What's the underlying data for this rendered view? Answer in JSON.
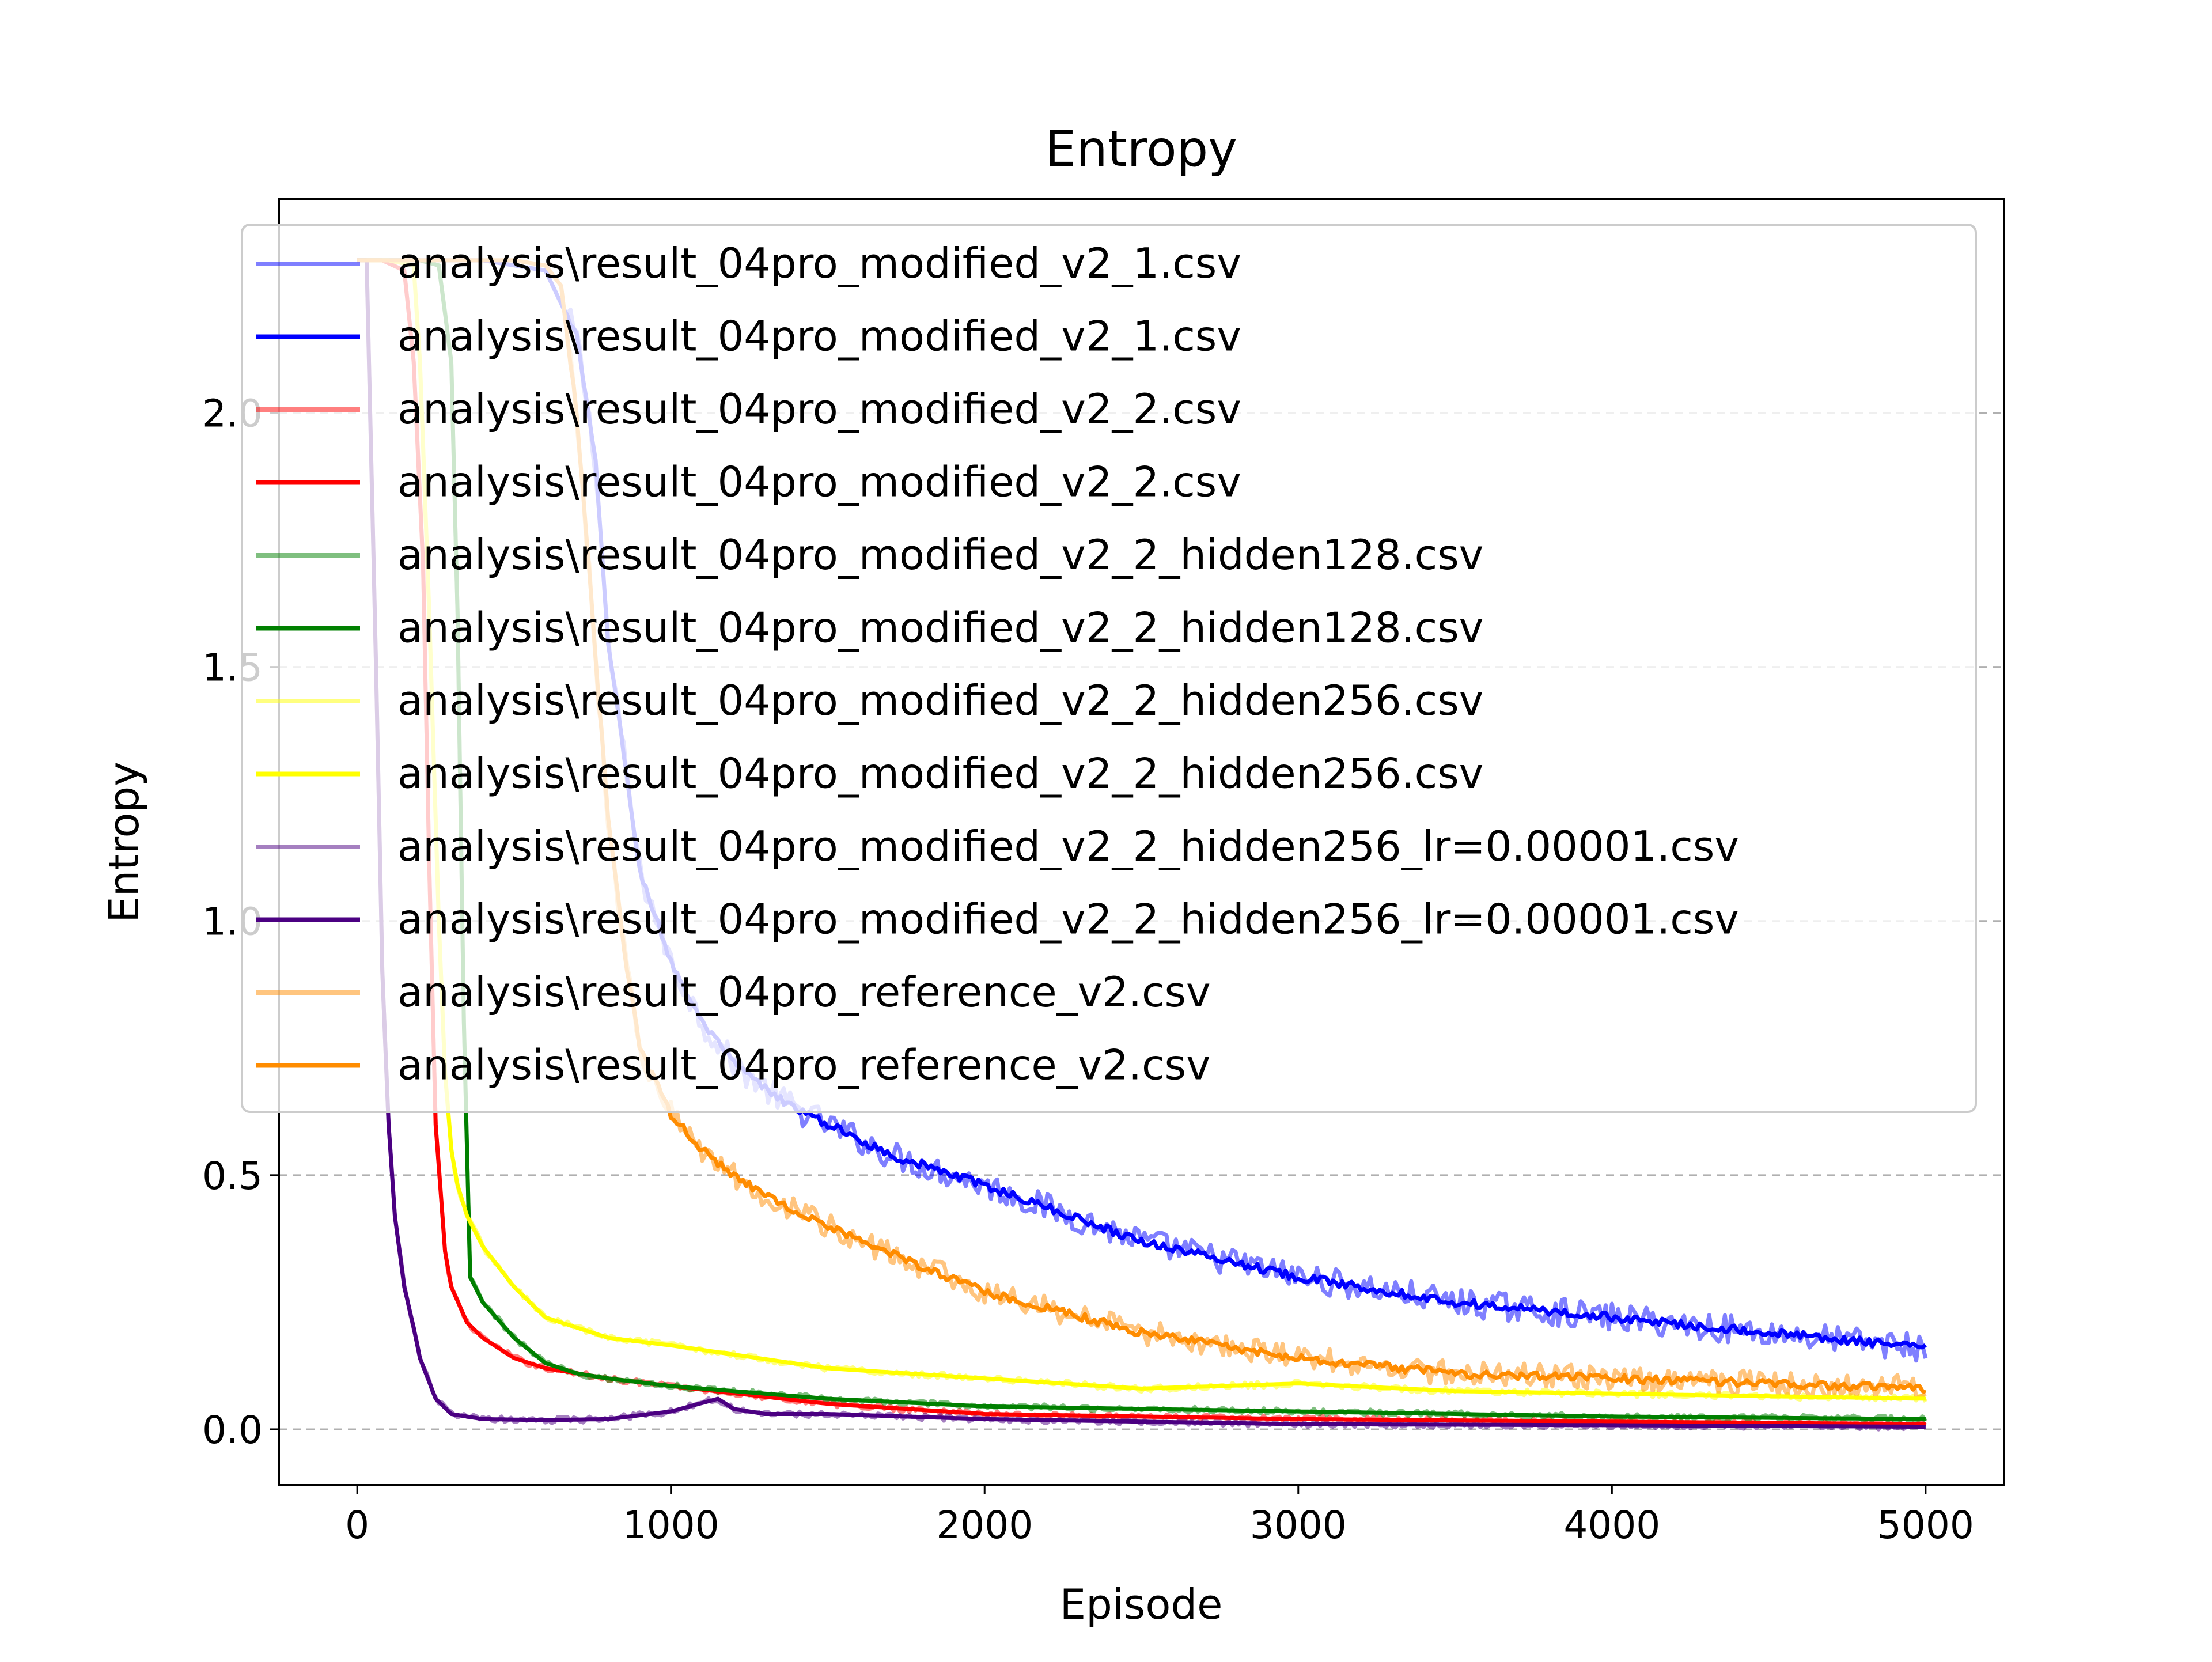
{
  "chart_data": {
    "type": "line",
    "title": "Entropy",
    "xlabel": "Episode",
    "ylabel": "Entropy",
    "xlim": [
      -250,
      5250
    ],
    "ylim": [
      -0.11,
      2.42
    ],
    "xticks": [
      0,
      1000,
      2000,
      3000,
      4000,
      5000
    ],
    "xtick_labels": [
      "0",
      "1000",
      "2000",
      "3000",
      "4000",
      "5000"
    ],
    "yticks": [
      0.0,
      0.5,
      1.0,
      1.5,
      2.0
    ],
    "ytick_labels": [
      "0.0",
      "0.5",
      "1.0",
      "1.5",
      "2.0"
    ],
    "grid": "y-dashed",
    "legend_position": "upper-right",
    "raw_line_opacity": 0.5,
    "series": [
      {
        "name": "analysis\\result_04pro_modified_v2_1.csv",
        "kind": "raw",
        "color": "#0000ff",
        "noise": 0.028,
        "x": [
          0,
          80,
          200,
          300,
          400,
          500,
          600,
          700,
          760,
          800,
          900,
          1000,
          1100,
          1200,
          1300,
          1400,
          1500,
          1700,
          2000,
          2500,
          3000,
          3500,
          4000,
          4500,
          5000
        ],
        "y": [
          2.3,
          2.3,
          2.3,
          2.3,
          2.3,
          2.29,
          2.28,
          2.15,
          1.9,
          1.55,
          1.1,
          0.92,
          0.8,
          0.72,
          0.67,
          0.63,
          0.6,
          0.54,
          0.48,
          0.37,
          0.3,
          0.25,
          0.22,
          0.19,
          0.16
        ]
      },
      {
        "name": "analysis\\result_04pro_modified_v2_1.csv",
        "kind": "smoothed",
        "color": "#0000ff",
        "noise": 0.008,
        "x": [
          0,
          80,
          200,
          300,
          400,
          500,
          600,
          700,
          760,
          800,
          900,
          1000,
          1100,
          1200,
          1300,
          1400,
          1500,
          1700,
          2000,
          2500,
          3000,
          3500,
          4000,
          4500,
          5000
        ],
        "y": [
          2.3,
          2.3,
          2.3,
          2.3,
          2.3,
          2.29,
          2.28,
          2.15,
          1.9,
          1.55,
          1.1,
          0.92,
          0.8,
          0.72,
          0.67,
          0.63,
          0.6,
          0.54,
          0.48,
          0.37,
          0.3,
          0.25,
          0.22,
          0.19,
          0.16
        ]
      },
      {
        "name": "analysis\\result_04pro_modified_v2_2.csv",
        "kind": "raw",
        "color": "#ff0000",
        "noise": 0.006,
        "x": [
          0,
          80,
          150,
          180,
          210,
          230,
          250,
          280,
          300,
          350,
          400,
          500,
          600,
          800,
          1000,
          1500,
          2000,
          3000,
          4000,
          5000
        ],
        "y": [
          2.3,
          2.3,
          2.28,
          2.1,
          1.7,
          1.1,
          0.6,
          0.35,
          0.28,
          0.21,
          0.18,
          0.14,
          0.12,
          0.1,
          0.085,
          0.05,
          0.03,
          0.02,
          0.015,
          0.01
        ]
      },
      {
        "name": "analysis\\result_04pro_modified_v2_2.csv",
        "kind": "smoothed",
        "color": "#ff0000",
        "noise": 0.0,
        "x": [
          0,
          80,
          150,
          180,
          210,
          230,
          250,
          280,
          300,
          350,
          400,
          500,
          600,
          800,
          1000,
          1500,
          2000,
          3000,
          4000,
          5000
        ],
        "y": [
          2.3,
          2.3,
          2.28,
          2.1,
          1.7,
          1.1,
          0.6,
          0.35,
          0.28,
          0.21,
          0.18,
          0.14,
          0.12,
          0.1,
          0.085,
          0.05,
          0.03,
          0.02,
          0.015,
          0.01
        ]
      },
      {
        "name": "analysis\\result_04pro_modified_v2_2_hidden128.csv",
        "kind": "raw",
        "color": "#008000",
        "noise": 0.006,
        "x": [
          0,
          100,
          200,
          260,
          300,
          320,
          340,
          360,
          400,
          500,
          600,
          700,
          800,
          1000,
          1500,
          2000,
          3000,
          4000,
          5000
        ],
        "y": [
          2.3,
          2.3,
          2.3,
          2.29,
          2.1,
          1.6,
          0.8,
          0.3,
          0.25,
          0.18,
          0.13,
          0.11,
          0.1,
          0.085,
          0.06,
          0.045,
          0.035,
          0.025,
          0.02
        ]
      },
      {
        "name": "analysis\\result_04pro_modified_v2_2_hidden128.csv",
        "kind": "smoothed",
        "color": "#008000",
        "noise": 0.0,
        "x": [
          0,
          100,
          200,
          260,
          300,
          320,
          340,
          360,
          400,
          500,
          600,
          700,
          800,
          1000,
          1500,
          2000,
          3000,
          4000,
          5000
        ],
        "y": [
          2.3,
          2.3,
          2.3,
          2.29,
          2.1,
          1.6,
          0.8,
          0.3,
          0.25,
          0.18,
          0.13,
          0.11,
          0.1,
          0.085,
          0.06,
          0.045,
          0.035,
          0.025,
          0.02
        ]
      },
      {
        "name": "analysis\\result_04pro_modified_v2_2_hidden256.csv",
        "kind": "raw",
        "color": "#ffff00",
        "noise": 0.006,
        "x": [
          0,
          100,
          180,
          200,
          230,
          260,
          280,
          300,
          320,
          350,
          400,
          500,
          600,
          800,
          1000,
          1500,
          2000,
          2500,
          3000,
          3500,
          4000,
          4500,
          5000
        ],
        "y": [
          2.3,
          2.3,
          2.29,
          2.1,
          1.6,
          1.0,
          0.7,
          0.55,
          0.48,
          0.42,
          0.36,
          0.28,
          0.22,
          0.18,
          0.165,
          0.12,
          0.1,
          0.08,
          0.09,
          0.075,
          0.07,
          0.065,
          0.06
        ]
      },
      {
        "name": "analysis\\result_04pro_modified_v2_2_hidden256.csv",
        "kind": "smoothed",
        "color": "#ffff00",
        "noise": 0.0,
        "x": [
          0,
          100,
          180,
          200,
          230,
          260,
          280,
          300,
          320,
          350,
          400,
          500,
          600,
          800,
          1000,
          1500,
          2000,
          2500,
          3000,
          3500,
          4000,
          4500,
          5000
        ],
        "y": [
          2.3,
          2.3,
          2.29,
          2.1,
          1.6,
          1.0,
          0.7,
          0.55,
          0.48,
          0.42,
          0.36,
          0.28,
          0.22,
          0.18,
          0.165,
          0.12,
          0.1,
          0.08,
          0.09,
          0.075,
          0.07,
          0.065,
          0.06
        ]
      },
      {
        "name": "analysis\\result_04pro_modified_v2_2_hidden256_lr=0.00001.csv",
        "kind": "raw",
        "color": "#4b0082",
        "noise": 0.006,
        "x": [
          0,
          30,
          60,
          80,
          100,
          120,
          150,
          180,
          200,
          250,
          300,
          400,
          600,
          800,
          1000,
          1150,
          1200,
          1300,
          1500,
          2000,
          3000,
          4000,
          5000
        ],
        "y": [
          2.3,
          2.3,
          1.5,
          0.9,
          0.6,
          0.42,
          0.28,
          0.2,
          0.14,
          0.06,
          0.03,
          0.02,
          0.018,
          0.02,
          0.035,
          0.06,
          0.04,
          0.03,
          0.03,
          0.02,
          0.01,
          0.008,
          0.005
        ]
      },
      {
        "name": "analysis\\result_04pro_modified_v2_2_hidden256_lr=0.00001.csv",
        "kind": "smoothed",
        "color": "#4b0082",
        "noise": 0.0,
        "x": [
          0,
          30,
          60,
          80,
          100,
          120,
          150,
          180,
          200,
          250,
          300,
          400,
          600,
          800,
          1000,
          1150,
          1200,
          1300,
          1500,
          2000,
          3000,
          4000,
          5000
        ],
        "y": [
          2.3,
          2.3,
          1.5,
          0.9,
          0.6,
          0.42,
          0.28,
          0.2,
          0.14,
          0.06,
          0.03,
          0.02,
          0.018,
          0.02,
          0.035,
          0.06,
          0.04,
          0.03,
          0.03,
          0.02,
          0.01,
          0.008,
          0.005
        ]
      },
      {
        "name": "analysis\\result_04pro_reference_v2.csv",
        "kind": "raw",
        "color": "#ff8c00",
        "noise": 0.025,
        "x": [
          0,
          100,
          300,
          500,
          600,
          650,
          700,
          750,
          800,
          850,
          900,
          1000,
          1100,
          1200,
          1300,
          1500,
          1800,
          2000,
          2500,
          3000,
          3500,
          4000,
          4500,
          5000
        ],
        "y": [
          2.3,
          2.3,
          2.3,
          2.3,
          2.29,
          2.25,
          2.0,
          1.6,
          1.2,
          0.95,
          0.75,
          0.62,
          0.55,
          0.5,
          0.46,
          0.4,
          0.32,
          0.27,
          0.19,
          0.14,
          0.11,
          0.1,
          0.09,
          0.08
        ]
      },
      {
        "name": "analysis\\result_04pro_reference_v2.csv",
        "kind": "smoothed",
        "color": "#ff8c00",
        "noise": 0.008,
        "x": [
          0,
          100,
          300,
          500,
          600,
          650,
          700,
          750,
          800,
          850,
          900,
          1000,
          1100,
          1200,
          1300,
          1500,
          1800,
          2000,
          2500,
          3000,
          3500,
          4000,
          4500,
          5000
        ],
        "y": [
          2.3,
          2.3,
          2.3,
          2.3,
          2.29,
          2.25,
          2.0,
          1.6,
          1.2,
          0.95,
          0.75,
          0.62,
          0.55,
          0.5,
          0.46,
          0.4,
          0.32,
          0.27,
          0.19,
          0.14,
          0.11,
          0.1,
          0.09,
          0.08
        ]
      }
    ]
  }
}
